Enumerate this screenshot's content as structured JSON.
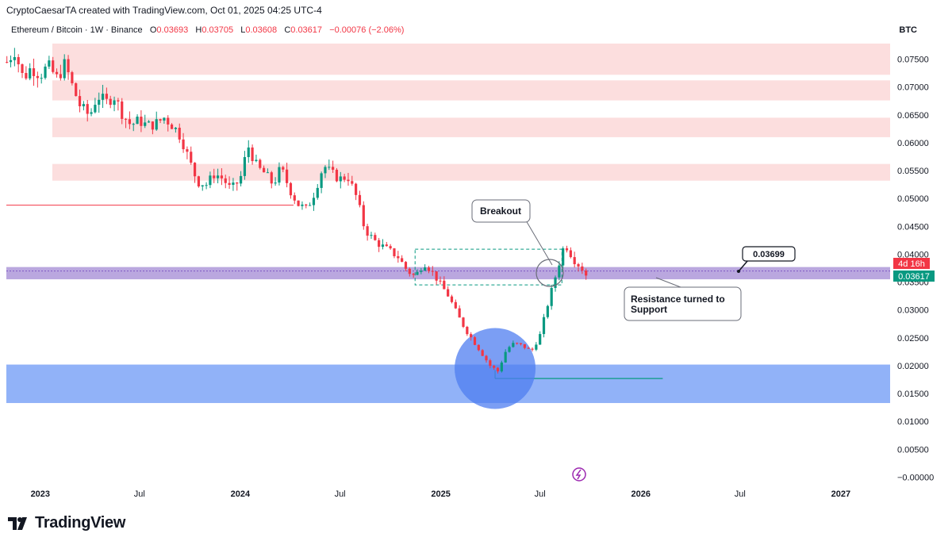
{
  "header": {
    "credit": "CryptoCaesarTA created with TradingView.com, Oct 01, 2025 04:25 UTC-4",
    "symbol_line": "Ethereum / Bitcoin · 1W · Binance",
    "ohlc": {
      "o_label": "O",
      "o": "0.03693",
      "h_label": "H",
      "h": "0.03705",
      "l_label": "L",
      "l": "0.03608",
      "c_label": "C",
      "c": "0.03617",
      "change": "−0.00076 (−2.06%)"
    },
    "quote_currency": "BTC"
  },
  "annotations": {
    "breakout": "Breakout",
    "level_label": "0.03699",
    "resistance_line1": "Resistance turned to",
    "resistance_line2": "Support",
    "countdown": "4d 16h",
    "last_price": "0.03617"
  },
  "footer": {
    "brand": "TradingView"
  },
  "colors": {
    "up": "#089981",
    "down": "#f23645",
    "resistance_zone": "#fcdede",
    "support_zone": "#7ea4f7",
    "pivot_band": "#b39ddb",
    "circle_fill": "#4f7ef0"
  },
  "chart_data": {
    "type": "candlestick",
    "quote": "BTC",
    "x_range": [
      "2022-10-31",
      "2027-04-01"
    ],
    "ylim": [
      -0.0015,
      0.0785
    ],
    "y_ticks": [
      -0.0,
      0.005,
      0.01,
      0.015,
      0.02,
      0.025,
      0.03,
      0.035,
      0.04,
      0.045,
      0.05,
      0.055,
      0.06,
      0.065,
      0.07,
      0.075
    ],
    "y_tick_labels": [
      "−0.00000",
      "0.00500",
      "0.01000",
      "0.01500",
      "0.02000",
      "0.02500",
      "0.03000",
      "0.03500",
      "0.04000",
      "0.04500",
      "0.05000",
      "0.05500",
      "0.06000",
      "0.06500",
      "0.07000",
      "0.07500"
    ],
    "x_ticks": [
      {
        "label": "2023",
        "date": "2023-01-01",
        "bold": true
      },
      {
        "label": "Jul",
        "date": "2023-07-01",
        "bold": false
      },
      {
        "label": "2024",
        "date": "2024-01-01",
        "bold": true
      },
      {
        "label": "Jul",
        "date": "2024-07-01",
        "bold": false
      },
      {
        "label": "2025",
        "date": "2025-01-01",
        "bold": true
      },
      {
        "label": "Jul",
        "date": "2025-07-01",
        "bold": false
      },
      {
        "label": "2026",
        "date": "2026-01-01",
        "bold": true
      },
      {
        "label": "Jul",
        "date": "2026-07-01",
        "bold": false
      },
      {
        "label": "2027",
        "date": "2027-01-01",
        "bold": true
      }
    ],
    "close_path": [
      {
        "date": "2022-11-01",
        "close": 0.0745
      },
      {
        "date": "2022-11-15",
        "close": 0.0765
      },
      {
        "date": "2022-12-01",
        "close": 0.0715
      },
      {
        "date": "2022-12-15",
        "close": 0.0735
      },
      {
        "date": "2023-01-01",
        "close": 0.0722
      },
      {
        "date": "2023-01-15",
        "close": 0.0738
      },
      {
        "date": "2023-02-01",
        "close": 0.0715
      },
      {
        "date": "2023-02-15",
        "close": 0.0742
      },
      {
        "date": "2023-03-01",
        "close": 0.07
      },
      {
        "date": "2023-03-15",
        "close": 0.0665
      },
      {
        "date": "2023-04-01",
        "close": 0.0648
      },
      {
        "date": "2023-04-15",
        "close": 0.0685
      },
      {
        "date": "2023-05-01",
        "close": 0.0672
      },
      {
        "date": "2023-05-15",
        "close": 0.0685
      },
      {
        "date": "2023-06-01",
        "close": 0.065
      },
      {
        "date": "2023-06-15",
        "close": 0.0632
      },
      {
        "date": "2023-07-01",
        "close": 0.064
      },
      {
        "date": "2023-07-15",
        "close": 0.063
      },
      {
        "date": "2023-08-01",
        "close": 0.0635
      },
      {
        "date": "2023-08-15",
        "close": 0.0645
      },
      {
        "date": "2023-09-01",
        "close": 0.063
      },
      {
        "date": "2023-09-15",
        "close": 0.061
      },
      {
        "date": "2023-10-01",
        "close": 0.0565
      },
      {
        "date": "2023-10-15",
        "close": 0.053
      },
      {
        "date": "2023-11-01",
        "close": 0.0525
      },
      {
        "date": "2023-11-15",
        "close": 0.0545
      },
      {
        "date": "2023-12-01",
        "close": 0.0535
      },
      {
        "date": "2023-12-15",
        "close": 0.0515
      },
      {
        "date": "2024-01-01",
        "close": 0.0535
      },
      {
        "date": "2024-01-15",
        "close": 0.0595
      },
      {
        "date": "2024-02-01",
        "close": 0.0555
      },
      {
        "date": "2024-02-15",
        "close": 0.0545
      },
      {
        "date": "2024-03-01",
        "close": 0.0525
      },
      {
        "date": "2024-03-15",
        "close": 0.0555
      },
      {
        "date": "2024-04-01",
        "close": 0.0515
      },
      {
        "date": "2024-04-15",
        "close": 0.049
      },
      {
        "date": "2024-05-01",
        "close": 0.048
      },
      {
        "date": "2024-05-15",
        "close": 0.051
      },
      {
        "date": "2024-06-01",
        "close": 0.056
      },
      {
        "date": "2024-06-15",
        "close": 0.0545
      },
      {
        "date": "2024-07-01",
        "close": 0.0535
      },
      {
        "date": "2024-07-15",
        "close": 0.054
      },
      {
        "date": "2024-08-01",
        "close": 0.05
      },
      {
        "date": "2024-08-15",
        "close": 0.0445
      },
      {
        "date": "2024-09-01",
        "close": 0.0425
      },
      {
        "date": "2024-09-15",
        "close": 0.0415
      },
      {
        "date": "2024-10-01",
        "close": 0.0405
      },
      {
        "date": "2024-10-15",
        "close": 0.0395
      },
      {
        "date": "2024-11-01",
        "close": 0.037
      },
      {
        "date": "2024-11-15",
        "close": 0.036
      },
      {
        "date": "2024-12-01",
        "close": 0.0385
      },
      {
        "date": "2024-12-15",
        "close": 0.037
      },
      {
        "date": "2025-01-01",
        "close": 0.0345
      },
      {
        "date": "2025-01-15",
        "close": 0.0325
      },
      {
        "date": "2025-02-01",
        "close": 0.029
      },
      {
        "date": "2025-02-15",
        "close": 0.0265
      },
      {
        "date": "2025-03-01",
        "close": 0.0245
      },
      {
        "date": "2025-03-15",
        "close": 0.0225
      },
      {
        "date": "2025-04-01",
        "close": 0.02
      },
      {
        "date": "2025-04-15",
        "close": 0.019
      },
      {
        "date": "2025-05-01",
        "close": 0.023
      },
      {
        "date": "2025-05-15",
        "close": 0.024
      },
      {
        "date": "2025-06-01",
        "close": 0.0235
      },
      {
        "date": "2025-06-15",
        "close": 0.0225
      },
      {
        "date": "2025-07-01",
        "close": 0.0255
      },
      {
        "date": "2025-07-15",
        "close": 0.031
      },
      {
        "date": "2025-08-01",
        "close": 0.037
      },
      {
        "date": "2025-08-15",
        "close": 0.042
      },
      {
        "date": "2025-09-01",
        "close": 0.039
      },
      {
        "date": "2025-09-15",
        "close": 0.0375
      },
      {
        "date": "2025-09-29",
        "close": 0.03617
      }
    ],
    "resistance_zones": [
      {
        "from": 0.0722,
        "to": 0.0778
      },
      {
        "from": 0.0676,
        "to": 0.0712
      },
      {
        "from": 0.061,
        "to": 0.0645
      },
      {
        "from": 0.0532,
        "to": 0.0562
      }
    ],
    "support_zone": {
      "from": 0.0133,
      "to": 0.0202
    },
    "pivot_level": 0.03699,
    "pivot_band": {
      "from": 0.0355,
      "to": 0.0377
    },
    "horizontal_line": 0.0488,
    "accumulation_box": {
      "from_date": "2024-11-15",
      "to_date": "2025-08-10",
      "low": 0.0345,
      "high": 0.0409
    },
    "support_line": {
      "from_date": "2025-04-10",
      "to_date": "2026-02-10",
      "level": 0.0177
    }
  }
}
